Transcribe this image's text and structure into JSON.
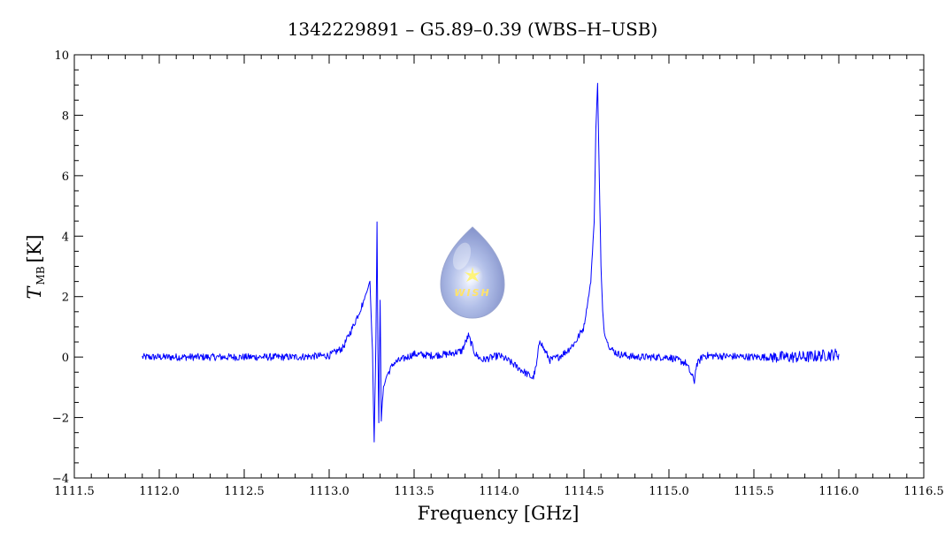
{
  "chart_data": {
    "type": "line",
    "title": "1342229891 – G5.89–0.39 (WBS–H–USB)",
    "xlabel": "Frequency [GHz]",
    "ylabel_main": "T",
    "ylabel_sub": "MB",
    "ylabel_unit": "[K]",
    "xlim": [
      1111.5,
      1116.5
    ],
    "ylim": [
      -4,
      10
    ],
    "xticks": [
      1111.5,
      1112.0,
      1112.5,
      1113.0,
      1113.5,
      1114.0,
      1114.5,
      1115.0,
      1115.5,
      1116.0,
      1116.5
    ],
    "xtick_labels": [
      "1111.5",
      "1112.0",
      "1112.5",
      "1113.0",
      "1113.5",
      "1114.0",
      "1114.5",
      "1115.0",
      "1115.5",
      "1116.0",
      "1116.5"
    ],
    "yticks": [
      -4,
      -2,
      0,
      2,
      4,
      6,
      8,
      10
    ],
    "ytick_labels": [
      "−4",
      "−2",
      "0",
      "2",
      "4",
      "6",
      "8",
      "10"
    ],
    "grid": false,
    "series": [
      {
        "color": "#0000ff",
        "x": [
          1111.9,
          1112.2,
          1112.5,
          1112.8,
          1113.0,
          1113.08,
          1113.14,
          1113.2,
          1113.24,
          1113.255,
          1113.265,
          1113.275,
          1113.282,
          1113.287,
          1113.292,
          1113.3,
          1113.307,
          1113.313,
          1113.32,
          1113.34,
          1113.38,
          1113.42,
          1113.46,
          1113.5,
          1113.6,
          1113.7,
          1113.78,
          1113.82,
          1113.86,
          1113.9,
          1114.0,
          1114.05,
          1114.1,
          1114.15,
          1114.2,
          1114.22,
          1114.24,
          1114.26,
          1114.3,
          1114.35,
          1114.4,
          1114.45,
          1114.5,
          1114.54,
          1114.56,
          1114.57,
          1114.58,
          1114.59,
          1114.6,
          1114.61,
          1114.62,
          1114.65,
          1114.7,
          1114.8,
          1114.9,
          1115.0,
          1115.1,
          1115.15,
          1115.16,
          1115.2,
          1115.5,
          1115.8,
          1116.0
        ],
        "y": [
          0.0,
          0.0,
          0.0,
          0.0,
          0.05,
          0.3,
          1.0,
          1.8,
          2.5,
          0.2,
          -2.8,
          0.5,
          4.5,
          0.3,
          -2.2,
          1.9,
          -2.1,
          -1.5,
          -1.0,
          -0.6,
          -0.2,
          -0.1,
          0.0,
          0.1,
          0.05,
          0.1,
          0.2,
          0.7,
          0.1,
          -0.1,
          0.05,
          -0.1,
          -0.3,
          -0.5,
          -0.7,
          -0.3,
          0.6,
          0.3,
          -0.1,
          0.0,
          0.2,
          0.5,
          1.0,
          2.5,
          4.5,
          7.5,
          9.1,
          6.0,
          3.0,
          1.5,
          0.8,
          0.3,
          0.1,
          0.0,
          0.0,
          0.0,
          -0.2,
          -0.8,
          -0.3,
          0.05,
          0.0,
          0.0,
          0.1
        ]
      }
    ]
  },
  "logo": {
    "text": "WISH"
  }
}
